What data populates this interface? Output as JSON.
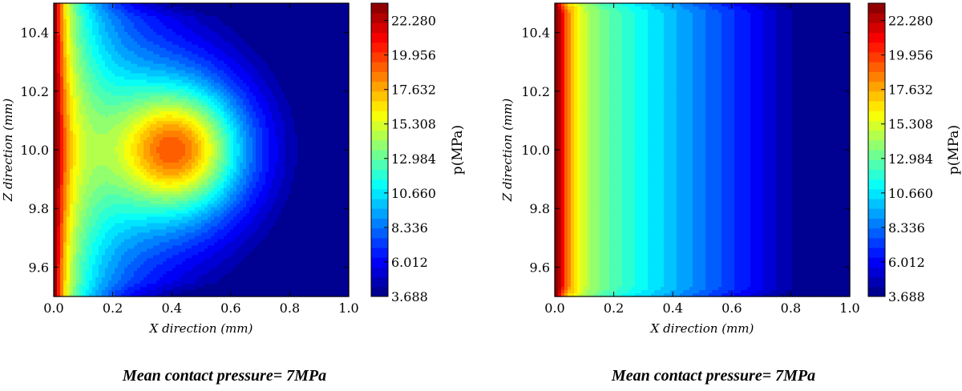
{
  "chart_data": [
    {
      "type": "heatmap",
      "variant": "filled-contour",
      "title": "",
      "xlabel": "X direction (mm)",
      "ylabel": "Z direction (mm)",
      "xlim": [
        0.0,
        1.0
      ],
      "ylim": [
        9.5,
        10.5
      ],
      "x_ticks": [
        "0.0",
        "0.2",
        "0.4",
        "0.6",
        "0.8",
        "1.0"
      ],
      "y_ticks": [
        "9.6",
        "9.8",
        "10.0",
        "10.2",
        "10.4"
      ],
      "colorbar": {
        "label": "p(MPa)",
        "min": 3.688,
        "max": 23.442,
        "ticks": [
          "3.688",
          "6.012",
          "8.336",
          "10.660",
          "12.984",
          "15.308",
          "17.632",
          "19.956",
          "22.280"
        ],
        "colormap": "jet"
      },
      "field": {
        "pattern": "edge line load at x=0 plus central circular peak",
        "edge_peak_mpa": 23.0,
        "center_x_mm": 0.42,
        "center_z_mm": 10.0,
        "center_peak_mpa": 19.0,
        "min_mpa": 3.7
      },
      "caption": "Mean contact pressure= 7MPa"
    },
    {
      "type": "heatmap",
      "variant": "filled-contour",
      "title": "",
      "xlabel": "X direction (mm)",
      "ylabel": "Z direction (mm)",
      "xlim": [
        0.0,
        1.0
      ],
      "ylim": [
        9.5,
        10.5
      ],
      "x_ticks": [
        "0.0",
        "0.2",
        "0.4",
        "0.6",
        "0.8",
        "1.0"
      ],
      "y_ticks": [
        "9.6",
        "9.8",
        "10.0",
        "10.2",
        "10.4"
      ],
      "colorbar": {
        "label": "p(MPa)",
        "min": 3.688,
        "max": 23.442,
        "ticks": [
          "3.688",
          "6.012",
          "8.336",
          "10.660",
          "12.984",
          "15.308",
          "17.632",
          "19.956",
          "22.280"
        ],
        "colormap": "jet"
      },
      "field": {
        "pattern": "edge line load at x=0 decaying linearly toward x=1",
        "edge_peak_mpa": 23.0,
        "min_mpa": 3.7
      },
      "caption": "Mean contact pressure= 7MPa"
    }
  ]
}
